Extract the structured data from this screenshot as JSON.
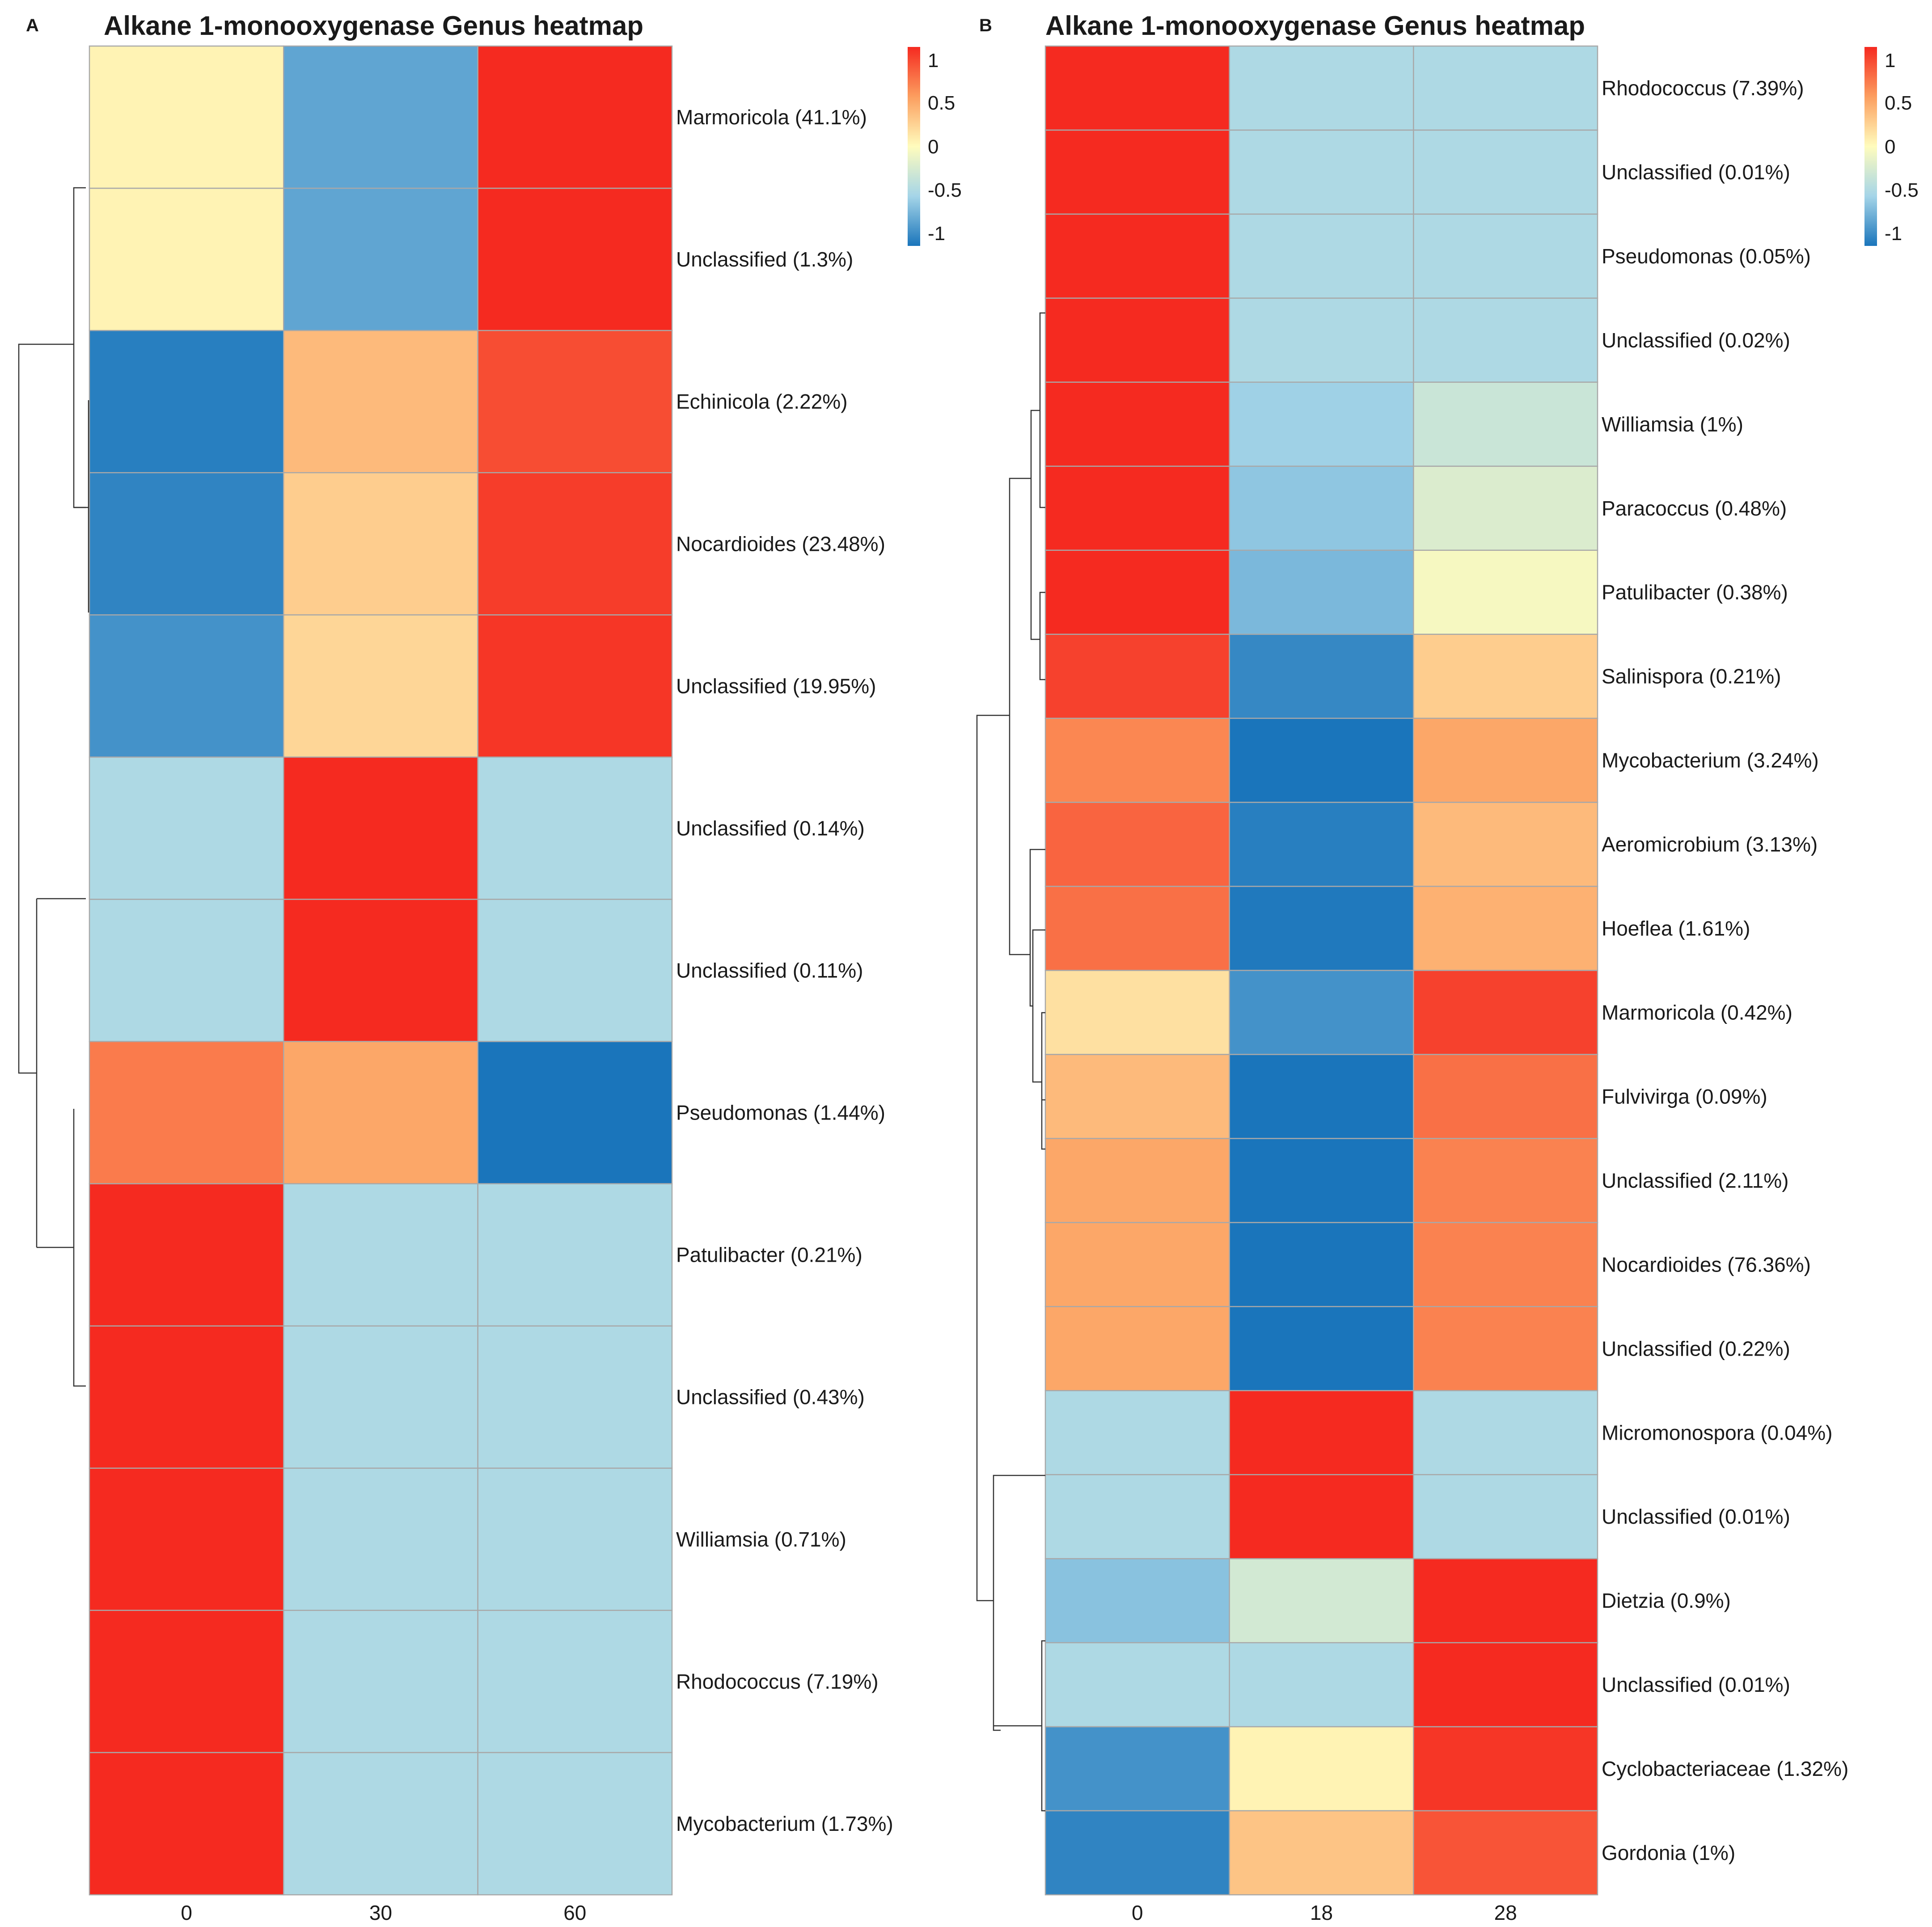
{
  "chart_data": [
    {
      "type": "heatmap",
      "panel": "A",
      "title": "Alkane 1-monooxygenase Genus heatmap",
      "columns": [
        "0",
        "30",
        "60"
      ],
      "rows": [
        {
          "label": "Marmoricola (41.1%)",
          "values": [
            0.05,
            -0.75,
            1.0
          ]
        },
        {
          "label": "Unclassified (1.3%)",
          "values": [
            0.05,
            -0.75,
            1.0
          ]
        },
        {
          "label": "Echinicola (2.22%)",
          "values": [
            -0.95,
            0.35,
            0.85
          ]
        },
        {
          "label": "Nocardioides (23.48%)",
          "values": [
            -0.92,
            0.25,
            0.92
          ]
        },
        {
          "label": "Unclassified (19.95%)",
          "values": [
            -0.85,
            0.2,
            0.95
          ]
        },
        {
          "label": "Unclassified (0.14%)",
          "values": [
            -0.45,
            1.0,
            -0.45
          ]
        },
        {
          "label": "Unclassified (0.11%)",
          "values": [
            -0.45,
            1.0,
            -0.45
          ]
        },
        {
          "label": "Pseudomonas (1.44%)",
          "values": [
            0.65,
            0.45,
            -1.0
          ]
        },
        {
          "label": "Patulibacter (0.21%)",
          "values": [
            1.0,
            -0.45,
            -0.45
          ]
        },
        {
          "label": "Unclassified (0.43%)",
          "values": [
            1.0,
            -0.45,
            -0.45
          ]
        },
        {
          "label": "Williamsia (0.71%)",
          "values": [
            1.0,
            -0.45,
            -0.45
          ]
        },
        {
          "label": "Rhodococcus (7.19%)",
          "values": [
            1.0,
            -0.45,
            -0.45
          ]
        },
        {
          "label": "Mycobacterium (1.73%)",
          "values": [
            1.0,
            -0.45,
            -0.45
          ]
        }
      ],
      "legend": {
        "ticks": [
          "1",
          "0.5",
          "0",
          "-0.5",
          "-1"
        ],
        "range": [
          -1,
          1
        ]
      }
    },
    {
      "type": "heatmap",
      "panel": "B",
      "title": "Alkane 1-monooxygenase Genus heatmap",
      "columns": [
        "0",
        "18",
        "28"
      ],
      "rows": [
        {
          "label": "Rhodococcus (7.39%)",
          "values": [
            1.0,
            -0.45,
            -0.45
          ]
        },
        {
          "label": "Unclassified (0.01%)",
          "values": [
            1.0,
            -0.45,
            -0.45
          ]
        },
        {
          "label": "Pseudomonas (0.05%)",
          "values": [
            1.0,
            -0.45,
            -0.45
          ]
        },
        {
          "label": "Unclassified (0.02%)",
          "values": [
            1.0,
            -0.45,
            -0.45
          ]
        },
        {
          "label": "Williamsia (1%)",
          "values": [
            1.0,
            -0.52,
            -0.3
          ]
        },
        {
          "label": "Paracoccus (0.48%)",
          "values": [
            1.0,
            -0.58,
            -0.2
          ]
        },
        {
          "label": "Patulibacter (0.38%)",
          "values": [
            1.0,
            -0.65,
            -0.05
          ]
        },
        {
          "label": "Salinispora (0.21%)",
          "values": [
            0.9,
            -0.9,
            0.25
          ]
        },
        {
          "label": "Mycobacterium (3.24%)",
          "values": [
            0.6,
            -1.0,
            0.45
          ]
        },
        {
          "label": "Aeromicrobium (3.13%)",
          "values": [
            0.75,
            -0.95,
            0.35
          ]
        },
        {
          "label": "Hoeflea (1.61%)",
          "values": [
            0.7,
            -0.98,
            0.4
          ]
        },
        {
          "label": "Marmoricola (0.42%)",
          "values": [
            0.15,
            -0.85,
            0.9
          ]
        },
        {
          "label": "Fulvivirga (0.09%)",
          "values": [
            0.35,
            -1.0,
            0.7
          ]
        },
        {
          "label": "Unclassified (2.11%)",
          "values": [
            0.45,
            -1.0,
            0.62
          ]
        },
        {
          "label": "Nocardioides (76.36%)",
          "values": [
            0.45,
            -1.0,
            0.62
          ]
        },
        {
          "label": "Unclassified (0.22%)",
          "values": [
            0.45,
            -1.0,
            0.62
          ]
        },
        {
          "label": "Micromonospora (0.04%)",
          "values": [
            -0.45,
            1.0,
            -0.45
          ]
        },
        {
          "label": "Unclassified (0.01%)",
          "values": [
            -0.45,
            1.0,
            -0.45
          ]
        },
        {
          "label": "Dietzia (0.9%)",
          "values": [
            -0.6,
            -0.25,
            1.0
          ]
        },
        {
          "label": "Unclassified (0.01%)",
          "values": [
            -0.45,
            -0.45,
            1.0
          ]
        },
        {
          "label": "Cyclobacteriaceae (1.32%)",
          "values": [
            -0.85,
            0.05,
            0.95
          ]
        },
        {
          "label": "Gordonia (1%)",
          "values": [
            -0.92,
            0.3,
            0.82
          ]
        }
      ],
      "legend": {
        "ticks": [
          "1",
          "0.5",
          "0",
          "-0.5",
          "-1"
        ],
        "range": [
          -1,
          1
        ]
      }
    }
  ]
}
